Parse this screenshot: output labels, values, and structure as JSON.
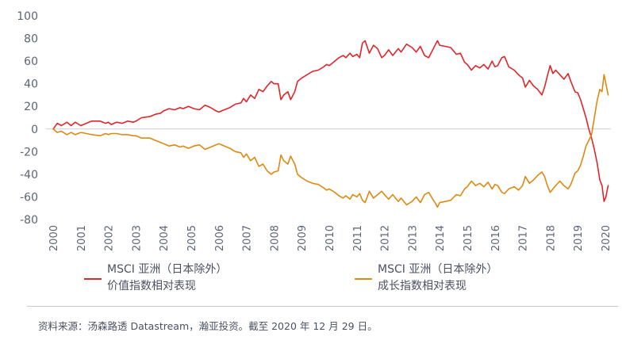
{
  "chart_data": {
    "type": "line",
    "x_labels": [
      "2000",
      "2001",
      "2002",
      "2003",
      "2004",
      "2005",
      "2006",
      "2007",
      "2008",
      "2009",
      "2010",
      "2011",
      "2012",
      "2013",
      "2014",
      "2015",
      "2016",
      "2017",
      "2018",
      "2019",
      "2020"
    ],
    "yticks": [
      100,
      80,
      60,
      40,
      20,
      0,
      -20,
      -40,
      -60,
      -80
    ],
    "ylim": [
      -80,
      100
    ],
    "xlim": [
      2000,
      2020
    ],
    "grid": false,
    "series": [
      {
        "name": "MSCI 亚洲（日本除外）价值指数相对表现",
        "label_line1": "MSCI 亚洲（日本除外）",
        "label_line2": "价值指数相对表现",
        "color": "#e0262b",
        "points": [
          [
            2000.0,
            0
          ],
          [
            2000.15,
            5
          ],
          [
            2000.3,
            3
          ],
          [
            2000.5,
            6
          ],
          [
            2000.65,
            3
          ],
          [
            2000.8,
            6
          ],
          [
            2001.0,
            3
          ],
          [
            2001.2,
            5
          ],
          [
            2001.4,
            7
          ],
          [
            2001.7,
            7
          ],
          [
            2001.9,
            5
          ],
          [
            2002.0,
            6
          ],
          [
            2002.1,
            4
          ],
          [
            2002.3,
            6
          ],
          [
            2002.5,
            5
          ],
          [
            2002.7,
            7
          ],
          [
            2002.9,
            6
          ],
          [
            2003.0,
            7
          ],
          [
            2003.2,
            10
          ],
          [
            2003.5,
            11
          ],
          [
            2003.7,
            13
          ],
          [
            2003.9,
            14
          ],
          [
            2004.0,
            16
          ],
          [
            2004.2,
            18
          ],
          [
            2004.4,
            17
          ],
          [
            2004.6,
            19
          ],
          [
            2004.7,
            18
          ],
          [
            2004.9,
            20
          ],
          [
            2005.1,
            18
          ],
          [
            2005.3,
            17
          ],
          [
            2005.5,
            21
          ],
          [
            2005.7,
            19
          ],
          [
            2005.9,
            16
          ],
          [
            2006.0,
            15
          ],
          [
            2006.2,
            17
          ],
          [
            2006.4,
            19
          ],
          [
            2006.6,
            22
          ],
          [
            2006.8,
            23
          ],
          [
            2006.9,
            27
          ],
          [
            2007.0,
            24
          ],
          [
            2007.15,
            30
          ],
          [
            2007.3,
            27
          ],
          [
            2007.45,
            35
          ],
          [
            2007.6,
            33
          ],
          [
            2007.75,
            38
          ],
          [
            2007.9,
            42
          ],
          [
            2008.0,
            40
          ],
          [
            2008.15,
            40
          ],
          [
            2008.25,
            26
          ],
          [
            2008.35,
            30
          ],
          [
            2008.5,
            33
          ],
          [
            2008.6,
            26
          ],
          [
            2008.75,
            33
          ],
          [
            2008.85,
            42
          ],
          [
            2009.0,
            45
          ],
          [
            2009.2,
            48
          ],
          [
            2009.4,
            51
          ],
          [
            2009.6,
            52
          ],
          [
            2009.8,
            55
          ],
          [
            2009.9,
            57
          ],
          [
            2010.0,
            56
          ],
          [
            2010.2,
            60
          ],
          [
            2010.35,
            63
          ],
          [
            2010.5,
            65
          ],
          [
            2010.6,
            63
          ],
          [
            2010.75,
            67
          ],
          [
            2010.85,
            64
          ],
          [
            2011.0,
            66
          ],
          [
            2011.1,
            63
          ],
          [
            2011.2,
            76
          ],
          [
            2011.3,
            78
          ],
          [
            2011.45,
            67
          ],
          [
            2011.6,
            74
          ],
          [
            2011.75,
            71
          ],
          [
            2011.9,
            63
          ],
          [
            2012.0,
            65
          ],
          [
            2012.15,
            70
          ],
          [
            2012.3,
            65
          ],
          [
            2012.5,
            71
          ],
          [
            2012.6,
            68
          ],
          [
            2012.8,
            75
          ],
          [
            2013.0,
            72
          ],
          [
            2013.15,
            68
          ],
          [
            2013.3,
            73
          ],
          [
            2013.45,
            65
          ],
          [
            2013.6,
            63
          ],
          [
            2013.75,
            70
          ],
          [
            2013.85,
            75
          ],
          [
            2013.92,
            78
          ],
          [
            2014.0,
            74
          ],
          [
            2014.2,
            73
          ],
          [
            2014.4,
            72
          ],
          [
            2014.6,
            66
          ],
          [
            2014.75,
            67
          ],
          [
            2014.9,
            59
          ],
          [
            2015.0,
            57
          ],
          [
            2015.15,
            52
          ],
          [
            2015.3,
            56
          ],
          [
            2015.45,
            54
          ],
          [
            2015.6,
            57
          ],
          [
            2015.75,
            53
          ],
          [
            2015.9,
            60
          ],
          [
            2016.0,
            55
          ],
          [
            2016.1,
            56
          ],
          [
            2016.25,
            63
          ],
          [
            2016.35,
            64
          ],
          [
            2016.5,
            55
          ],
          [
            2016.7,
            52
          ],
          [
            2016.85,
            48
          ],
          [
            2017.0,
            45
          ],
          [
            2017.1,
            37
          ],
          [
            2017.25,
            43
          ],
          [
            2017.4,
            38
          ],
          [
            2017.55,
            35
          ],
          [
            2017.7,
            30
          ],
          [
            2017.8,
            37
          ],
          [
            2017.9,
            47
          ],
          [
            2018.0,
            56
          ],
          [
            2018.1,
            49
          ],
          [
            2018.2,
            52
          ],
          [
            2018.35,
            48
          ],
          [
            2018.5,
            44
          ],
          [
            2018.65,
            49
          ],
          [
            2018.75,
            42
          ],
          [
            2018.9,
            33
          ],
          [
            2019.0,
            32
          ],
          [
            2019.1,
            26
          ],
          [
            2019.2,
            18
          ],
          [
            2019.3,
            10
          ],
          [
            2019.4,
            0
          ],
          [
            2019.5,
            -8
          ],
          [
            2019.6,
            -18
          ],
          [
            2019.7,
            -30
          ],
          [
            2019.8,
            -45
          ],
          [
            2019.88,
            -50
          ],
          [
            2019.95,
            -64
          ],
          [
            2020.02,
            -60
          ],
          [
            2020.1,
            -50
          ]
        ]
      },
      {
        "name": "MSCI 亚洲（日本除外）成长指数相对表现",
        "label_line1": "MSCI 亚洲（日本除外）",
        "label_line2": "成长指数相对表现",
        "color": "#dd8a12",
        "points": [
          [
            2000.0,
            0
          ],
          [
            2000.15,
            -3
          ],
          [
            2000.3,
            -2
          ],
          [
            2000.5,
            -5
          ],
          [
            2000.65,
            -3
          ],
          [
            2000.8,
            -5
          ],
          [
            2001.0,
            -3
          ],
          [
            2001.2,
            -4
          ],
          [
            2001.4,
            -5
          ],
          [
            2001.7,
            -6
          ],
          [
            2001.9,
            -4
          ],
          [
            2002.0,
            -5
          ],
          [
            2002.1,
            -4
          ],
          [
            2002.3,
            -4
          ],
          [
            2002.5,
            -5
          ],
          [
            2002.7,
            -5
          ],
          [
            2002.9,
            -6
          ],
          [
            2003.0,
            -6
          ],
          [
            2003.2,
            -8
          ],
          [
            2003.5,
            -8
          ],
          [
            2003.7,
            -10
          ],
          [
            2003.9,
            -12
          ],
          [
            2004.0,
            -13
          ],
          [
            2004.2,
            -15
          ],
          [
            2004.4,
            -14
          ],
          [
            2004.6,
            -16
          ],
          [
            2004.7,
            -15
          ],
          [
            2004.9,
            -17
          ],
          [
            2005.1,
            -15
          ],
          [
            2005.3,
            -14
          ],
          [
            2005.5,
            -18
          ],
          [
            2005.7,
            -16
          ],
          [
            2005.9,
            -14
          ],
          [
            2006.0,
            -13
          ],
          [
            2006.2,
            -15
          ],
          [
            2006.4,
            -17
          ],
          [
            2006.6,
            -20
          ],
          [
            2006.8,
            -21
          ],
          [
            2006.9,
            -25
          ],
          [
            2007.0,
            -22
          ],
          [
            2007.15,
            -28
          ],
          [
            2007.3,
            -25
          ],
          [
            2007.45,
            -33
          ],
          [
            2007.6,
            -31
          ],
          [
            2007.75,
            -37
          ],
          [
            2007.9,
            -40
          ],
          [
            2008.0,
            -38
          ],
          [
            2008.15,
            -37
          ],
          [
            2008.25,
            -23
          ],
          [
            2008.35,
            -28
          ],
          [
            2008.5,
            -31
          ],
          [
            2008.6,
            -24
          ],
          [
            2008.75,
            -31
          ],
          [
            2008.85,
            -40
          ],
          [
            2009.0,
            -43
          ],
          [
            2009.2,
            -46
          ],
          [
            2009.4,
            -48
          ],
          [
            2009.6,
            -49
          ],
          [
            2009.8,
            -52
          ],
          [
            2009.9,
            -54
          ],
          [
            2010.0,
            -53
          ],
          [
            2010.2,
            -56
          ],
          [
            2010.35,
            -59
          ],
          [
            2010.5,
            -61
          ],
          [
            2010.6,
            -59
          ],
          [
            2010.75,
            -62
          ],
          [
            2010.85,
            -58
          ],
          [
            2011.0,
            -60
          ],
          [
            2011.1,
            -57
          ],
          [
            2011.2,
            -63
          ],
          [
            2011.3,
            -65
          ],
          [
            2011.45,
            -55
          ],
          [
            2011.6,
            -61
          ],
          [
            2011.75,
            -58
          ],
          [
            2011.9,
            -55
          ],
          [
            2012.0,
            -58
          ],
          [
            2012.15,
            -62
          ],
          [
            2012.3,
            -58
          ],
          [
            2012.5,
            -64
          ],
          [
            2012.6,
            -61
          ],
          [
            2012.8,
            -67
          ],
          [
            2013.0,
            -64
          ],
          [
            2013.15,
            -60
          ],
          [
            2013.3,
            -65
          ],
          [
            2013.45,
            -58
          ],
          [
            2013.6,
            -56
          ],
          [
            2013.75,
            -62
          ],
          [
            2013.85,
            -66
          ],
          [
            2013.92,
            -69
          ],
          [
            2014.0,
            -65
          ],
          [
            2014.2,
            -64
          ],
          [
            2014.4,
            -63
          ],
          [
            2014.6,
            -58
          ],
          [
            2014.75,
            -59
          ],
          [
            2014.9,
            -53
          ],
          [
            2015.0,
            -51
          ],
          [
            2015.15,
            -46
          ],
          [
            2015.3,
            -50
          ],
          [
            2015.45,
            -48
          ],
          [
            2015.6,
            -51
          ],
          [
            2015.75,
            -47
          ],
          [
            2015.9,
            -53
          ],
          [
            2016.0,
            -49
          ],
          [
            2016.1,
            -50
          ],
          [
            2016.25,
            -56
          ],
          [
            2016.35,
            -57
          ],
          [
            2016.5,
            -53
          ],
          [
            2016.7,
            -51
          ],
          [
            2016.85,
            -54
          ],
          [
            2017.0,
            -50
          ],
          [
            2017.1,
            -42
          ],
          [
            2017.25,
            -48
          ],
          [
            2017.4,
            -45
          ],
          [
            2017.55,
            -41
          ],
          [
            2017.7,
            -38
          ],
          [
            2017.8,
            -42
          ],
          [
            2017.9,
            -50
          ],
          [
            2018.0,
            -56
          ],
          [
            2018.1,
            -53
          ],
          [
            2018.2,
            -50
          ],
          [
            2018.35,
            -46
          ],
          [
            2018.5,
            -50
          ],
          [
            2018.65,
            -53
          ],
          [
            2018.75,
            -49
          ],
          [
            2018.9,
            -39
          ],
          [
            2019.0,
            -37
          ],
          [
            2019.1,
            -32
          ],
          [
            2019.2,
            -24
          ],
          [
            2019.3,
            -15
          ],
          [
            2019.4,
            -10
          ],
          [
            2019.5,
            -5
          ],
          [
            2019.6,
            10
          ],
          [
            2019.7,
            25
          ],
          [
            2019.8,
            35
          ],
          [
            2019.88,
            33
          ],
          [
            2019.95,
            48
          ],
          [
            2020.02,
            40
          ],
          [
            2020.1,
            30
          ]
        ]
      }
    ]
  },
  "source": "资料来源：汤森路透 Datastream，瀚亚投资。截至 2020 年 12 月 29 日。"
}
